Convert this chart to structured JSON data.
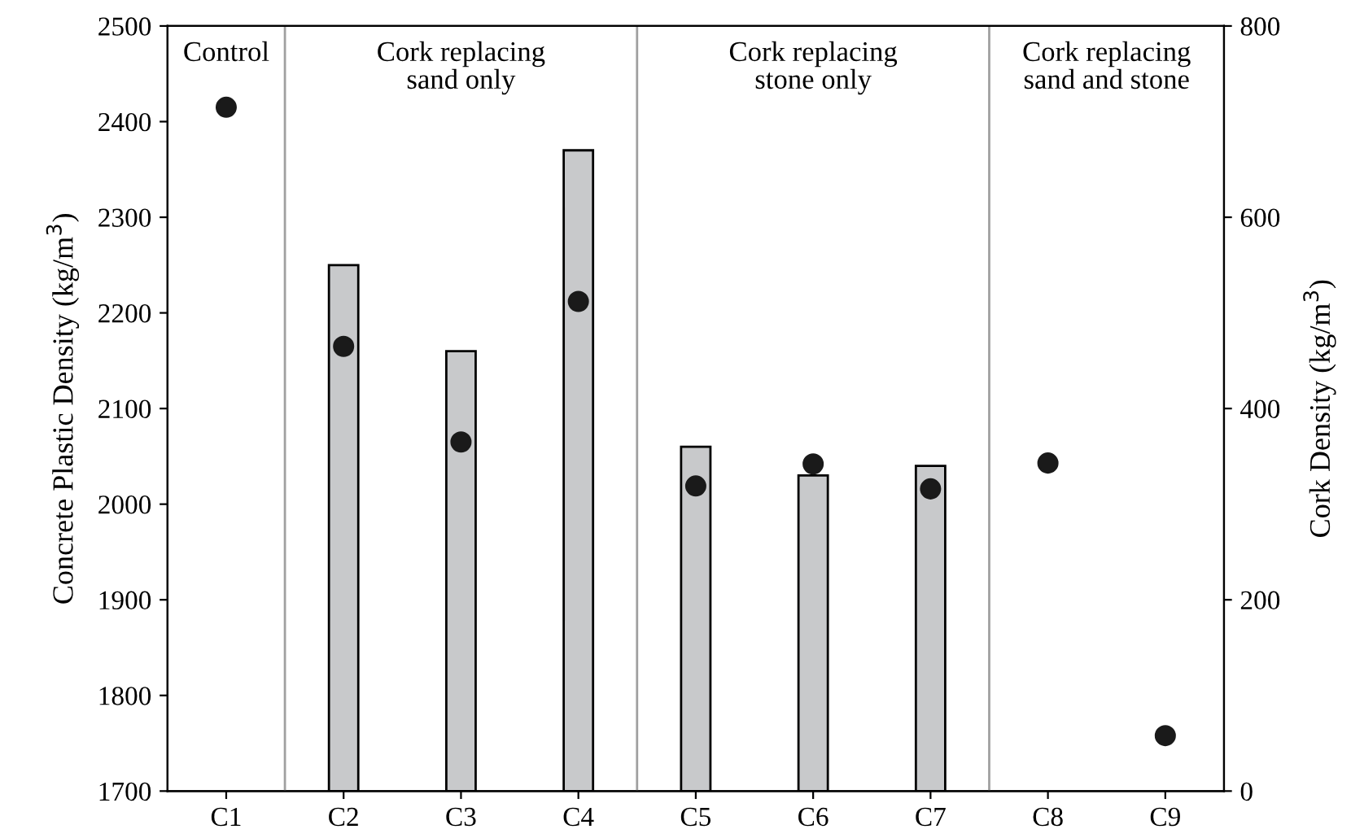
{
  "chart_data": {
    "type": "bar",
    "ylabel": "Concrete Plastic Density (kg/m$^{3}$)",
    "y2label": "Cork Density (kg/m$^{3}$)",
    "categories": [
      "C1",
      "C2",
      "C3",
      "C4",
      "C5",
      "C6",
      "C7",
      "C8",
      "C9"
    ],
    "series": [
      {
        "axis": "y2",
        "color": "#c8c9cb",
        "values": [
          null,
          550,
          460,
          670,
          360,
          330,
          340,
          null,
          null
        ]
      },
      {
        "type": "scatter",
        "axis": "y",
        "color": "#1a1a1a",
        "marker": "circle",
        "values": [
          2415,
          2165,
          2065,
          2212,
          2019,
          2042,
          2016,
          2043,
          1758
        ]
      }
    ],
    "ylim": [
      1700,
      2500
    ],
    "yticks": [
      1700,
      1800,
      1900,
      2000,
      2100,
      2200,
      2300,
      2400,
      2500
    ],
    "y2lim": [
      0,
      800
    ],
    "y2ticks": [
      0,
      200,
      400,
      600,
      800
    ],
    "annotations": [
      "Control",
      "Cork replacing\nsand only",
      "Cork replacing\nstone only",
      "Cork replacing\nsand and stone"
    ],
    "grid": false
  }
}
